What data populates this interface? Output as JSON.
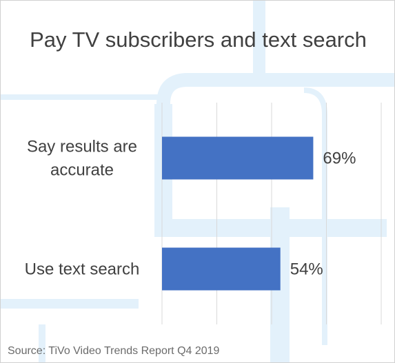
{
  "chart_data": {
    "type": "bar",
    "orientation": "horizontal",
    "title": "Pay TV subscribers and text search",
    "categories": [
      "Say results are accurate",
      "Use text search"
    ],
    "category_lines": [
      [
        "Say results are",
        "accurate"
      ],
      [
        "Use text search"
      ]
    ],
    "values": [
      69,
      54
    ],
    "data_labels": [
      "69%",
      "54%"
    ],
    "value_unit": "%",
    "xlim": [
      0,
      100
    ],
    "grid": true,
    "legend": "none",
    "bar_color": "#4472C4"
  },
  "source": "Source: TiVo Video Trends Report Q4 2019"
}
